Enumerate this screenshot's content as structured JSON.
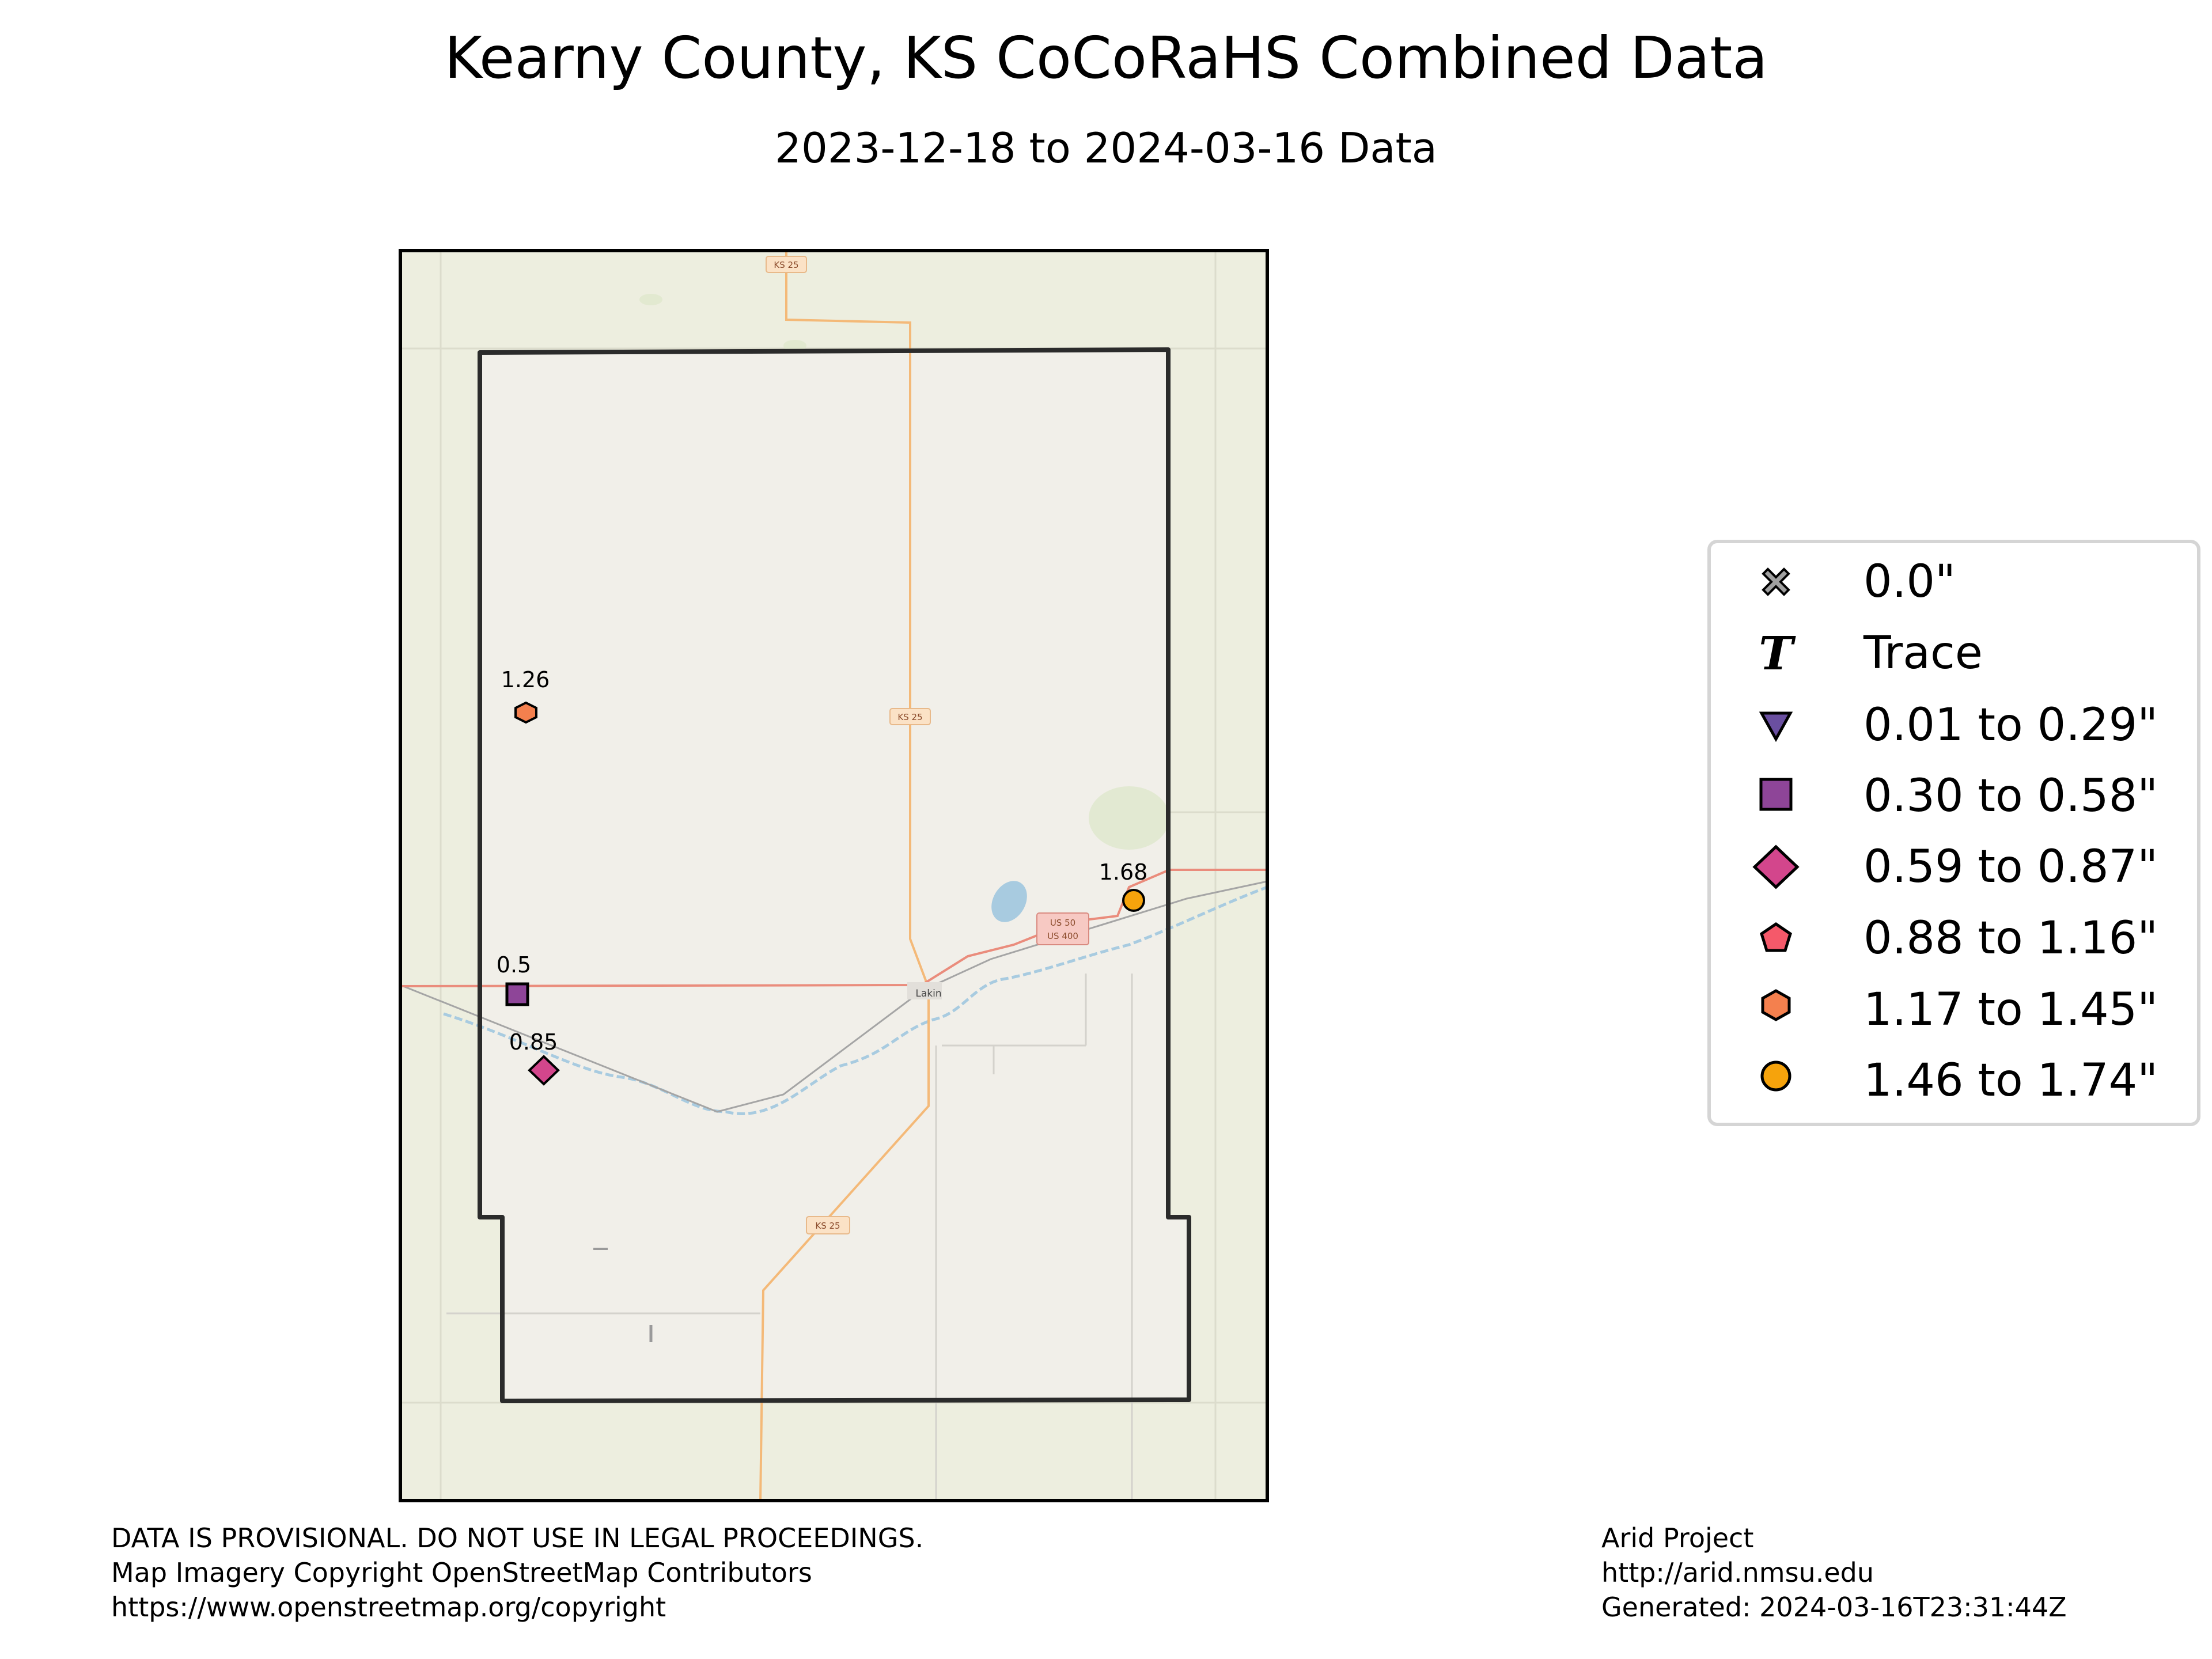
{
  "title": "Kearny County, KS CoCoRaHS Combined Data",
  "subtitle": "2023-12-18 to 2024-03-16 Data",
  "map": {
    "road_labels": [
      "KS 25",
      "KS 25",
      "KS 25",
      "US 50",
      "US 400"
    ],
    "town_label": "Lakin",
    "colors": {
      "background": "#edeedf",
      "county_fill": "#f1efe9",
      "border": "#222222",
      "road_state": "#f4b978",
      "road_us": "#ea8c7c",
      "river": "#a8cbe0",
      "lake": "#a8cbe0"
    }
  },
  "stations": [
    {
      "value": "1.26",
      "category": "1.17 to 1.45\"",
      "marker": "hexagon",
      "color": "#f4804e"
    },
    {
      "value": "1.68",
      "category": "1.46 to 1.74\"",
      "marker": "circle",
      "color": "#f6a30c"
    },
    {
      "value": "0.5",
      "category": "0.30 to 0.58\"",
      "marker": "square",
      "color": "#8e4598"
    },
    {
      "value": "0.85",
      "category": "0.59 to 0.87\"",
      "marker": "diamond",
      "color": "#d3468c"
    }
  ],
  "legend": [
    {
      "label": "0.0\"",
      "marker": "x-icon",
      "color": "#a0a0a0"
    },
    {
      "label": "Trace",
      "marker": "t-icon",
      "color": "#000000"
    },
    {
      "label": "0.01 to 0.29\"",
      "marker": "triangle-down-icon",
      "color": "#6a4fa0"
    },
    {
      "label": "0.30 to 0.58\"",
      "marker": "square-icon",
      "color": "#8e4598"
    },
    {
      "label": "0.59 to 0.87\"",
      "marker": "diamond-icon",
      "color": "#d3468c"
    },
    {
      "label": "0.88 to 1.16\"",
      "marker": "pentagon-icon",
      "color": "#f5596a"
    },
    {
      "label": "1.17 to 1.45\"",
      "marker": "hexagon-icon",
      "color": "#f4804e"
    },
    {
      "label": "1.46 to 1.74\"",
      "marker": "circle-icon",
      "color": "#f6a30c"
    }
  ],
  "footer_left": [
    "DATA IS PROVISIONAL. DO NOT USE IN LEGAL PROCEEDINGS.",
    "Map Imagery Copyright OpenStreetMap Contributors",
    "https://www.openstreetmap.org/copyright"
  ],
  "footer_right": [
    "Arid Project",
    "http://arid.nmsu.edu",
    "Generated: 2024-03-16T23:31:44Z"
  ]
}
